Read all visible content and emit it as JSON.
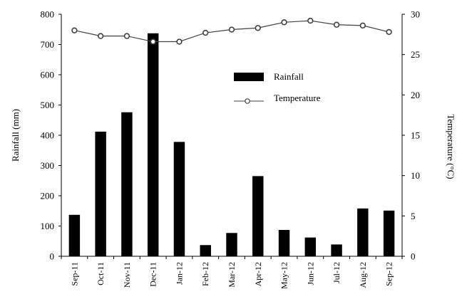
{
  "chart_data": {
    "type": "bar",
    "categories": [
      "Sep-11",
      "Oct-11",
      "Nov-11",
      "Dec-11",
      "Jan-12",
      "Feb-12",
      "Mar-12",
      "Apr-12",
      "May-12",
      "Jun-12",
      "Jul-12",
      "Aug-12",
      "Sep-12"
    ],
    "series": [
      {
        "name": "Rainfall",
        "type": "bar",
        "axis": "left",
        "color": "#000000",
        "values": [
          137,
          412,
          476,
          737,
          378,
          37,
          77,
          265,
          87,
          62,
          39,
          158,
          151
        ]
      },
      {
        "name": "Temperature",
        "type": "line",
        "axis": "right",
        "color": "#404040",
        "marker": "open-circle",
        "values": [
          28.0,
          27.3,
          27.3,
          26.6,
          26.6,
          27.7,
          28.1,
          28.3,
          29.0,
          29.2,
          28.7,
          28.6,
          27.8
        ]
      }
    ],
    "ylabel": "Rainfall  (mm)",
    "y2label": "Temperature (°C)",
    "ylim": [
      0,
      800
    ],
    "yticks": [
      "0",
      "100",
      "200",
      "300",
      "400",
      "500",
      "600",
      "700",
      "800"
    ],
    "y2lim": [
      0,
      30
    ],
    "y2ticks": [
      "0",
      "5",
      "10",
      "15",
      "20",
      "25",
      "30"
    ],
    "grid": false,
    "legend": "upper-center"
  }
}
